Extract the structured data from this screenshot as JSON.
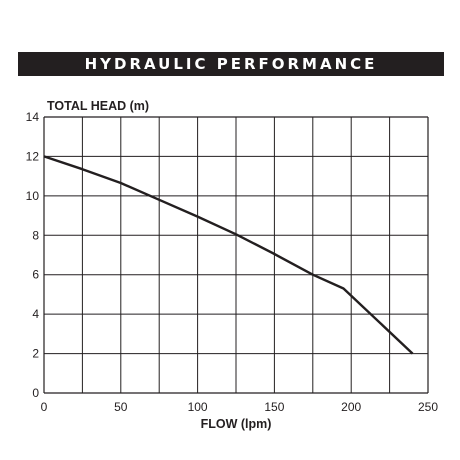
{
  "header": {
    "title": "HYDRAULIC PERFORMANCE"
  },
  "chart_data": {
    "type": "line",
    "title": "HYDRAULIC PERFORMANCE",
    "xlabel": "FLOW (lpm)",
    "ylabel": "TOTAL HEAD (m)",
    "xlim": [
      0,
      250
    ],
    "ylim": [
      0,
      14
    ],
    "xticks": [
      0,
      50,
      100,
      150,
      200,
      250
    ],
    "yticks": [
      0,
      2,
      4,
      6,
      8,
      10,
      12,
      14
    ],
    "grid": true,
    "line_color": "#231f20",
    "series": [
      {
        "x": [
          0,
          25,
          50,
          75,
          100,
          125,
          150,
          175,
          195,
          240
        ],
        "y": [
          12.0,
          11.35,
          10.65,
          9.8,
          8.95,
          8.05,
          7.05,
          6.0,
          5.3,
          2.0
        ]
      }
    ]
  }
}
